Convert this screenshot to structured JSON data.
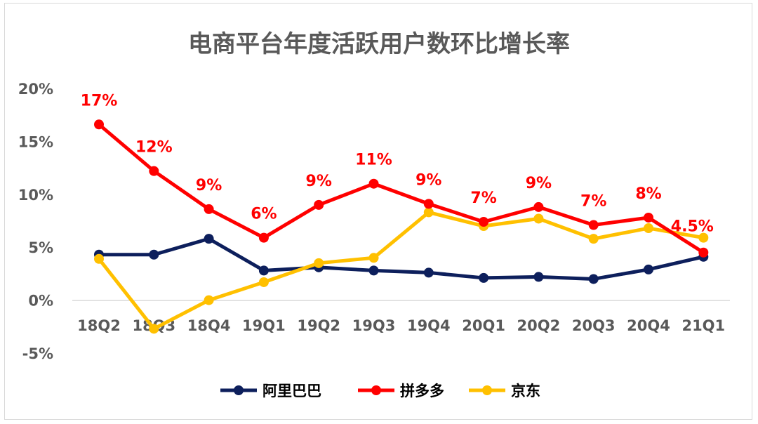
{
  "chart_data": {
    "type": "line",
    "title": "电商平台年度活跃用户数环比增长率",
    "categories": [
      "18Q2",
      "18Q3",
      "18Q4",
      "19Q1",
      "19Q2",
      "19Q3",
      "19Q4",
      "20Q1",
      "20Q2",
      "20Q3",
      "20Q4",
      "21Q1"
    ],
    "y_ticks": [
      "20%",
      "15%",
      "10%",
      "5%",
      "0%",
      "-5%"
    ],
    "ylim": [
      -5,
      20
    ],
    "grid": false,
    "legend_position": "bottom",
    "series": [
      {
        "name": "阿里巴巴",
        "color": "#0d1f5c",
        "values": [
          4.3,
          4.3,
          5.8,
          2.8,
          3.1,
          2.8,
          2.6,
          2.1,
          2.2,
          2.0,
          2.9,
          4.1
        ]
      },
      {
        "name": "拼多多",
        "color": "#ff0000",
        "values": [
          16.6,
          12.2,
          8.6,
          5.9,
          9.0,
          11.0,
          9.1,
          7.4,
          8.8,
          7.1,
          7.8,
          4.5
        ],
        "labels": [
          "17%",
          "12%",
          "9%",
          "6%",
          "9%",
          "11%",
          "9%",
          "7%",
          "9%",
          "7%",
          "8%",
          "4.5%"
        ]
      },
      {
        "name": "京东",
        "color": "#ffc000",
        "values": [
          3.9,
          -2.7,
          0.0,
          1.7,
          3.5,
          4.0,
          8.3,
          7.0,
          7.7,
          5.8,
          6.8,
          5.9
        ]
      }
    ]
  }
}
